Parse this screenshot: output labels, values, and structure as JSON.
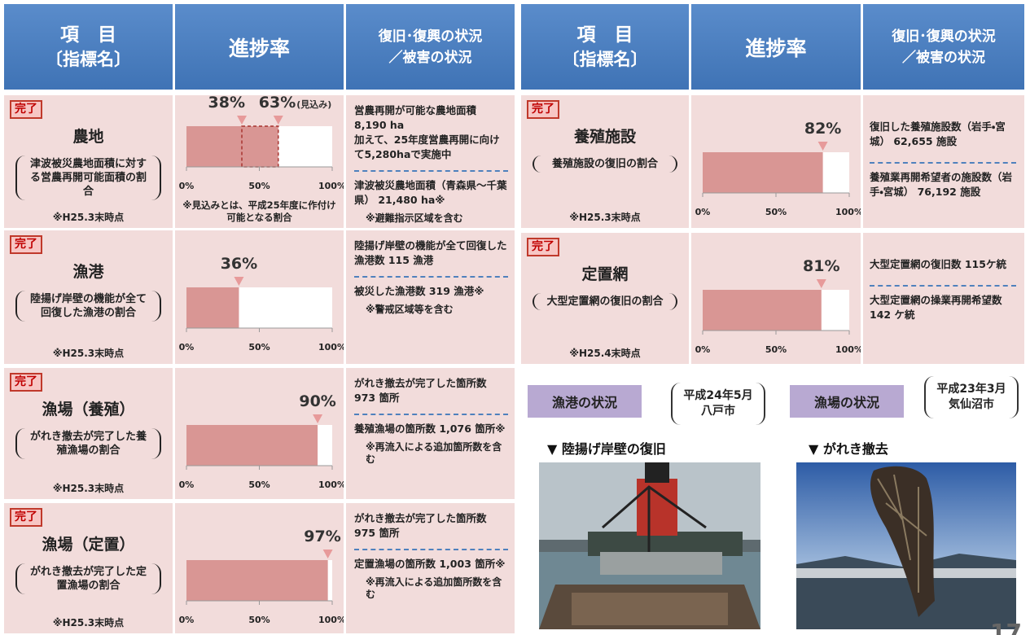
{
  "header": {
    "item": "項　目",
    "item_sub": "〔指標名〕",
    "progress": "進捗率",
    "status": "復旧･復興の状況",
    "status_sub": "／被害の状況"
  },
  "axis_ticks": [
    {
      "value": 0,
      "label": "0%"
    },
    {
      "value": 50,
      "label": "50%"
    },
    {
      "value": 100,
      "label": "100%"
    }
  ],
  "rows": [
    {
      "badge": "完了",
      "name": "農地",
      "description": "津波被災農地面積に対する営農再開可能面積の割合",
      "note": "※H25.3末時点",
      "progress": 38,
      "progress_label": "38%",
      "forecast": 63,
      "forecast_label": "63%",
      "forecast_suffix": "(見込み)",
      "footnote": "※見込みとは、平成25年度に作付け可能となる割合",
      "status": [
        "営農再開が可能な農地面積 8,190 ha",
        "加えて、25年度営農再開に向けて5,280haで実施中"
      ],
      "damage": [
        "津波被災農地面積（青森県～千葉県） 21,480 ha※"
      ],
      "damage_note": "※避難指示区域を含む"
    },
    {
      "badge": "完了",
      "name": "漁港",
      "description": "陸揚げ岸壁の機能が全て回復した漁港の割合",
      "note": "※H25.3末時点",
      "progress": 36,
      "progress_label": "36%",
      "status": [
        "陸揚げ岸壁の機能が全て回復した漁港数 115 漁港"
      ],
      "damage": [
        "被災した漁港数 319 漁港※"
      ],
      "damage_note": "※警戒区域等を含む"
    },
    {
      "badge": "完了",
      "name": "漁場（養殖）",
      "description": "がれき撤去が完了した養殖漁場の割合",
      "note": "※H25.3末時点",
      "progress": 90,
      "progress_label": "90%",
      "status": [
        "がれき撤去が完了した箇所数 973 箇所"
      ],
      "damage": [
        "養殖漁場の箇所数 1,076 箇所※"
      ],
      "damage_note": "※再流入による追加箇所数を含む"
    },
    {
      "badge": "完了",
      "name": "漁場（定置）",
      "description": "がれき撤去が完了した定置漁場の割合",
      "note": "※H25.3末時点",
      "progress": 97,
      "progress_label": "97%",
      "status": [
        "がれき撤去が完了した箇所数 975 箇所"
      ],
      "damage": [
        "定置漁場の箇所数 1,003 箇所※"
      ],
      "damage_note": "※再流入による追加箇所数を含む"
    },
    {
      "badge": "完了",
      "name": "養殖施設",
      "description": "養殖施設の復旧の割合",
      "note": "※H25.3末時点",
      "progress": 82,
      "progress_label": "82%",
      "status": [
        "復旧した養殖施設数（岩手・宮城） 62,655 施設"
      ],
      "damage": [
        "養殖業再開希望者の施設数（岩手・宮城） 76,192 施設"
      ]
    },
    {
      "badge": "完了",
      "name": "定置網",
      "description": "大型定置網の復旧の割合",
      "note": "※H25.4末時点",
      "progress": 81,
      "progress_label": "81%",
      "status": [
        "大型定置網の復旧数 115ケ統"
      ],
      "damage": [
        "大型定置網の操業再開希望数 142 ケ統"
      ]
    }
  ],
  "photos": [
    {
      "title": "漁港の状況",
      "date": "平成24年5月",
      "place": "八戸市",
      "caption": "▼ 陸揚げ岸壁の復旧"
    },
    {
      "title": "漁場の状況",
      "date": "平成23年3月",
      "place": "気仙沼市",
      "caption": "▼ がれき撤去"
    }
  ],
  "page_number": "17"
}
